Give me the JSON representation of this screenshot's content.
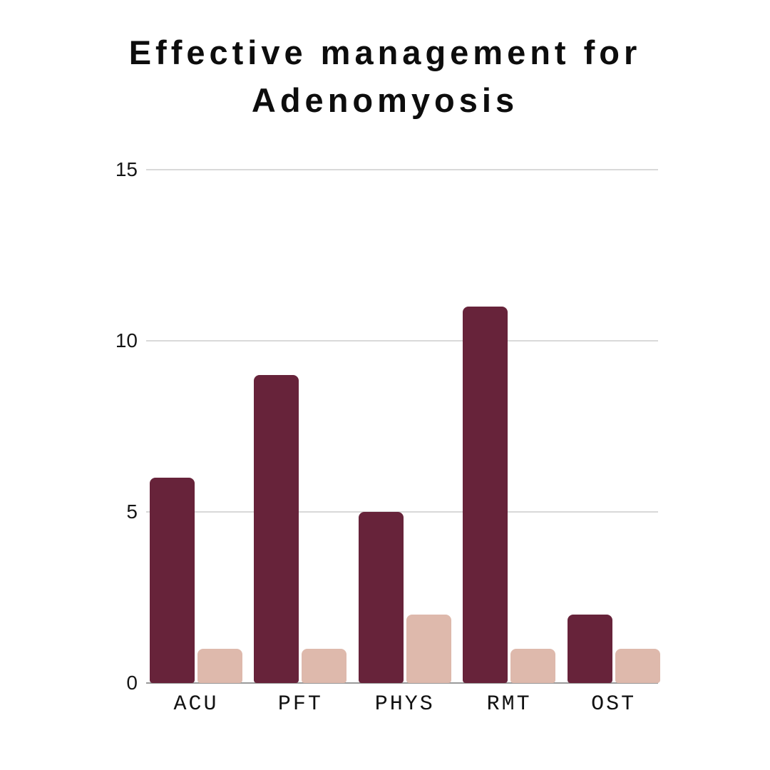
{
  "chart_data": {
    "type": "bar",
    "title": "Effective management for Adenomyosis",
    "title_lines": [
      "Effective management for",
      "Adenomyosis"
    ],
    "categories": [
      "ACU",
      "PFT",
      "PHYS",
      "RMT",
      "OST"
    ],
    "series": [
      {
        "name": "dark-maroon",
        "color": "#67233a",
        "values": [
          6,
          9,
          5,
          11,
          2
        ]
      },
      {
        "name": "light-pink",
        "color": "#deb9ac",
        "values": [
          1,
          1,
          2,
          1,
          1
        ]
      }
    ],
    "y_axis": {
      "min": 0,
      "max": 15,
      "ticks": [
        0,
        5,
        10,
        15
      ],
      "gridlines": true
    },
    "x_axis": {
      "labels": [
        "ACU",
        "PFT",
        "PHYS",
        "RMT",
        "OST"
      ]
    },
    "legend": "none",
    "colors": {
      "gridline": "#d9d9d9",
      "axis_line": "#999999",
      "text": "#111111",
      "title": "#0d0d0d",
      "background": "#ffffff"
    }
  }
}
